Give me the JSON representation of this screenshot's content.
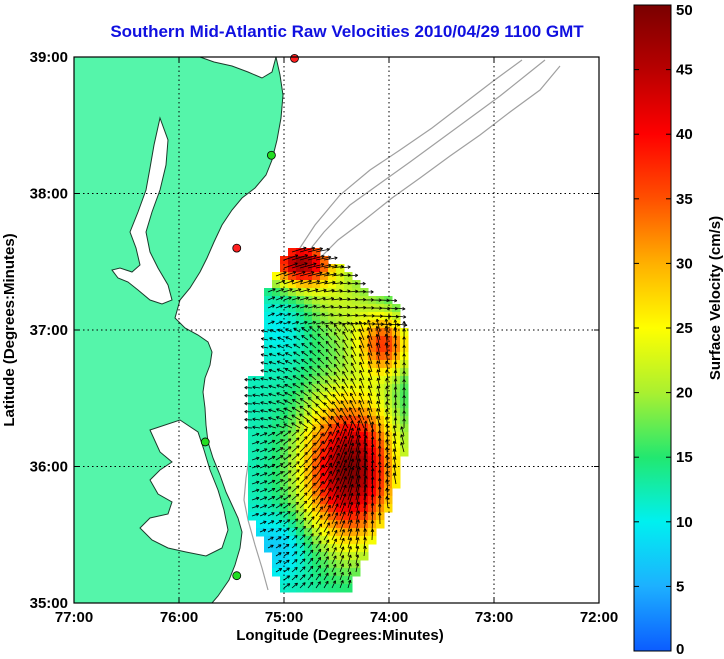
{
  "map": {
    "title": "Southern Mid-Atlantic Raw Velocities 2010/04/29 1100 GMT",
    "xlabel": "Longitude (Degrees:Minutes)",
    "ylabel": "Latitude (Degrees:Minutes)",
    "x_ticks": [
      "77:00",
      "76:00",
      "75:00",
      "74:00",
      "73:00",
      "72:00"
    ],
    "y_ticks": [
      "39:00",
      "38:00",
      "37:00",
      "36:00",
      "35:00"
    ],
    "lon_range": [
      -77,
      -72
    ],
    "lat_range": [
      35,
      39
    ],
    "grid": true,
    "land_color": "#55f5aa",
    "colorbar": {
      "label": "Surface Velocity (cm/s)",
      "ticks": [
        "50",
        "45",
        "40",
        "35",
        "30",
        "25",
        "20",
        "15",
        "10",
        "5",
        "0"
      ],
      "range": [
        0,
        50
      ],
      "stops": [
        "#0b5cff",
        "#1db0ff",
        "#00f0f0",
        "#22e870",
        "#aaf030",
        "#ffff00",
        "#ffb000",
        "#ff5000",
        "#ff0000",
        "#b80000",
        "#7a0000"
      ]
    },
    "stations": [
      {
        "lon": -74.9,
        "lat": 38.99,
        "color": "#ff2020"
      },
      {
        "lon": -75.12,
        "lat": 38.28,
        "color": "#22dd22"
      },
      {
        "lon": -75.45,
        "lat": 37.6,
        "color": "#ff2020"
      },
      {
        "lon": -75.75,
        "lat": 36.18,
        "color": "#22dd22"
      },
      {
        "lon": -75.45,
        "lat": 35.2,
        "color": "#22dd22"
      }
    ]
  }
}
